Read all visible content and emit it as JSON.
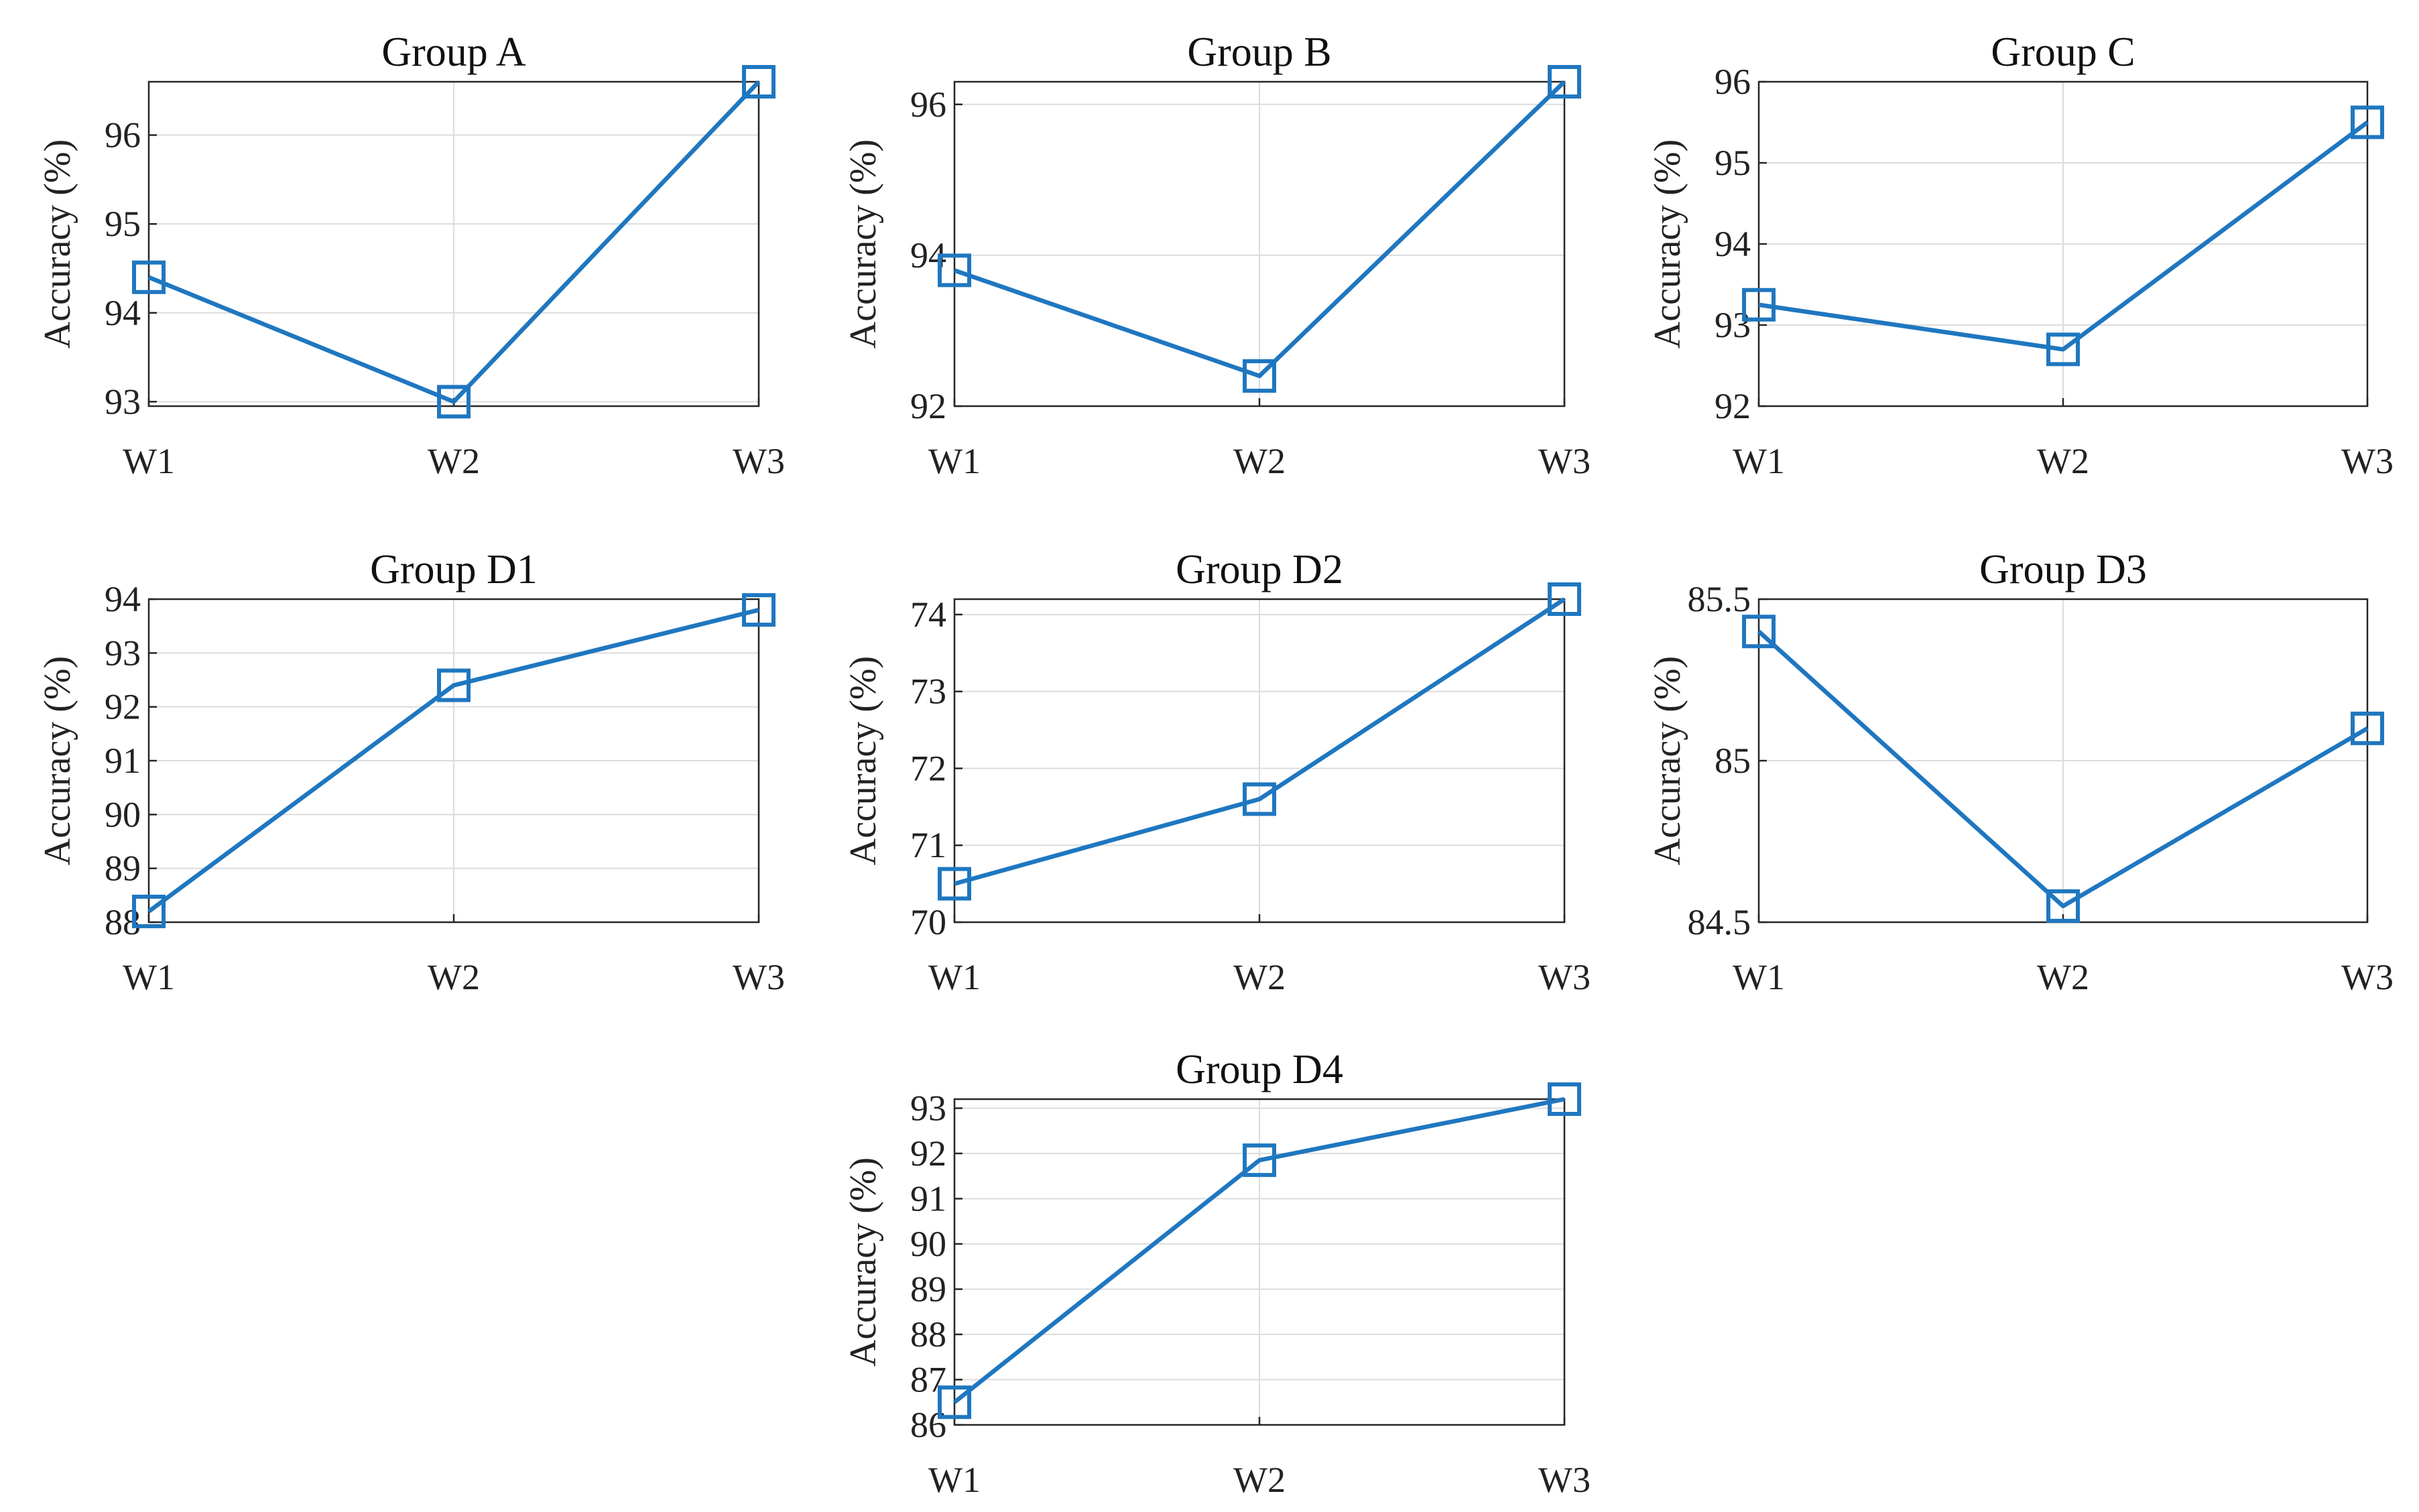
{
  "chart_data": [
    {
      "type": "line",
      "title": "Group A",
      "categories": [
        "W1",
        "W2",
        "W3"
      ],
      "values": [
        94.4,
        93.0,
        96.6
      ],
      "ylabel": "Accuracy (%)",
      "xlabel": "",
      "ylim": [
        92.95,
        96.6
      ],
      "yticks": [
        93,
        94,
        95,
        96
      ],
      "grid": true,
      "color": "#1f77c0",
      "marker": "square"
    },
    {
      "type": "line",
      "title": "Group B",
      "categories": [
        "W1",
        "W2",
        "W3"
      ],
      "values": [
        93.8,
        92.4,
        96.3
      ],
      "ylabel": "Accuracy (%)",
      "xlabel": "",
      "ylim": [
        92,
        96.3
      ],
      "yticks": [
        92,
        94,
        96
      ],
      "grid": true,
      "color": "#1f77c0",
      "marker": "square"
    },
    {
      "type": "line",
      "title": "Group C",
      "categories": [
        "W1",
        "W2",
        "W3"
      ],
      "values": [
        93.25,
        92.7,
        95.5
      ],
      "ylabel": "Accuracy (%)",
      "xlabel": "",
      "ylim": [
        92,
        96
      ],
      "yticks": [
        92,
        93,
        94,
        95,
        96
      ],
      "grid": true,
      "color": "#1f77c0",
      "marker": "square"
    },
    {
      "type": "line",
      "title": "Group D1",
      "categories": [
        "W1",
        "W2",
        "W3"
      ],
      "values": [
        88.2,
        92.4,
        93.8
      ],
      "ylabel": "Accuracy (%)",
      "xlabel": "",
      "ylim": [
        88,
        94
      ],
      "yticks": [
        88,
        89,
        90,
        91,
        92,
        93,
        94
      ],
      "grid": true,
      "color": "#1f77c0",
      "marker": "square"
    },
    {
      "type": "line",
      "title": "Group D2",
      "categories": [
        "W1",
        "W2",
        "W3"
      ],
      "values": [
        70.5,
        71.6,
        74.2
      ],
      "ylabel": "Accuracy (%)",
      "xlabel": "",
      "ylim": [
        70,
        74.2
      ],
      "yticks": [
        70,
        71,
        72,
        73,
        74
      ],
      "grid": true,
      "color": "#1f77c0",
      "marker": "square"
    },
    {
      "type": "line",
      "title": "Group D3",
      "categories": [
        "W1",
        "W2",
        "W3"
      ],
      "values": [
        85.4,
        84.55,
        85.1
      ],
      "ylabel": "Accuracy (%)",
      "xlabel": "",
      "ylim": [
        84.5,
        85.5
      ],
      "yticks": [
        84.5,
        85,
        85.5
      ],
      "grid": true,
      "color": "#1f77c0",
      "marker": "square"
    },
    {
      "type": "line",
      "title": "Group D4",
      "categories": [
        "W1",
        "W2",
        "W3"
      ],
      "values": [
        86.5,
        91.85,
        93.2
      ],
      "ylabel": "Accuracy (%)",
      "xlabel": "",
      "ylim": [
        86,
        93.2
      ],
      "yticks": [
        86,
        87,
        88,
        89,
        90,
        91,
        92,
        93
      ],
      "grid": true,
      "color": "#1f77c0",
      "marker": "square"
    }
  ]
}
